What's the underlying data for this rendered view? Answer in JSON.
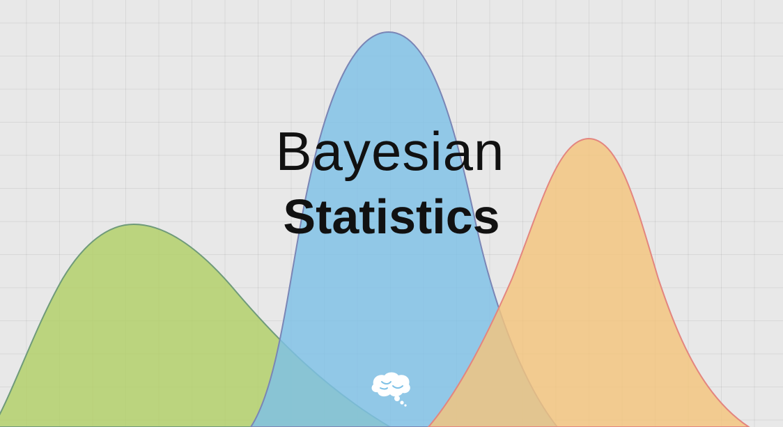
{
  "title": {
    "line1": "Bayesian",
    "line2": "Statistics"
  },
  "colors": {
    "background": "#e8e8e8",
    "green_fill": "#b3d06b",
    "green_stroke": "#6f9a7a",
    "blue_fill": "#7ec1e6",
    "blue_stroke": "#7a85b5",
    "orange_fill": "#f4c57c",
    "orange_stroke": "#e3857f",
    "text": "#111111",
    "logo": "#ffffff"
  },
  "icons": {
    "logo": "brain-icon"
  }
}
